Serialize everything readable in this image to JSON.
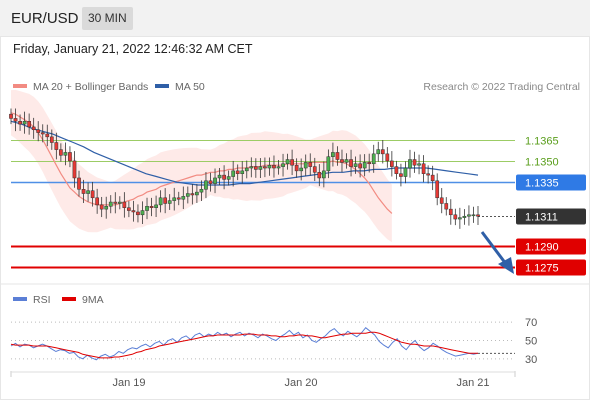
{
  "header": {
    "symbol": "EUR/USD",
    "timeframe": "30 MIN",
    "datetime": "Friday, January 21, 2022 12:46:32 AM CET"
  },
  "legend": {
    "ma20_label": "MA 20 + Bollinger Bands",
    "ma50_label": "MA 50",
    "copyright": "Research © 2022 Trading Central"
  },
  "rsi_legend": {
    "rsi_label": "RSI",
    "ma_label": "9MA"
  },
  "colors": {
    "bull": "#4caf50",
    "bear": "#e53935",
    "ma20": "#f28b82",
    "ma50": "#2f5fa7",
    "band": "#fdd8d5",
    "resistance": "#9ccc65",
    "pivot": "#4f8fe6",
    "support": "#e00000",
    "current": "#333333",
    "rsi": "#5b7fd6",
    "rsi_ma": "#e00000",
    "arrow": "#2f5fa7"
  },
  "chart_data": {
    "type": "candlestick",
    "y_range": [
      1.1266,
      1.1393
    ],
    "x_ticks": [
      "Jan 19",
      "Jan 20",
      "Jan 21"
    ],
    "levels": [
      {
        "label": "1.1365",
        "value": 1.1365,
        "kind": "resistance"
      },
      {
        "label": "1.1350",
        "value": 1.135,
        "kind": "resistance"
      },
      {
        "label": "1.1335",
        "value": 1.1335,
        "kind": "pivot"
      },
      {
        "label": "1.1311",
        "value": 1.1311,
        "kind": "current"
      },
      {
        "label": "1.1290",
        "value": 1.129,
        "kind": "support"
      },
      {
        "label": "1.1275",
        "value": 1.1275,
        "kind": "support"
      }
    ],
    "close": [
      1.138,
      1.1378,
      1.1376,
      1.1378,
      1.1374,
      1.1372,
      1.137,
      1.1369,
      1.1367,
      1.1363,
      1.1358,
      1.1354,
      1.1356,
      1.135,
      1.1338,
      1.133,
      1.1327,
      1.1329,
      1.1324,
      1.1319,
      1.1316,
      1.1318,
      1.1321,
      1.132,
      1.1321,
      1.1317,
      1.1315,
      1.1314,
      1.1312,
      1.1315,
      1.1318,
      1.1317,
      1.1319,
      1.1324,
      1.132,
      1.1322,
      1.1324,
      1.1323,
      1.1325,
      1.1327,
      1.1326,
      1.1328,
      1.133,
      1.1336,
      1.1334,
      1.1338,
      1.134,
      1.1337,
      1.1339,
      1.1343,
      1.1341,
      1.1343,
      1.1345,
      1.1346,
      1.1344,
      1.1346,
      1.1345,
      1.1347,
      1.1345,
      1.1346,
      1.1348,
      1.1351,
      1.1347,
      1.1343,
      1.1345,
      1.1349,
      1.1346,
      1.1342,
      1.1338,
      1.1343,
      1.1353,
      1.1356,
      1.1351,
      1.1349,
      1.1351,
      1.1346,
      1.1348,
      1.1345,
      1.1349,
      1.1348,
      1.1355,
      1.1358,
      1.1355,
      1.135,
      1.1346,
      1.1341,
      1.1339,
      1.1345,
      1.1351,
      1.1347,
      1.1348,
      1.1341,
      1.134,
      1.1336,
      1.1324,
      1.132,
      1.1316,
      1.1312,
      1.1309,
      1.131,
      1.1311,
      1.1312,
      1.1312,
      1.1311
    ],
    "ma20": [
      1.1384,
      1.1383,
      1.1381,
      1.1379,
      1.1377,
      1.1374,
      1.137,
      1.1365,
      1.1359,
      1.1353,
      1.1347,
      1.1341,
      1.1336,
      1.1331,
      1.1328,
      1.1325,
      1.1323,
      1.1321,
      1.132,
      1.1319,
      1.1319,
      1.1319,
      1.1319,
      1.1319,
      1.132,
      1.1321,
      1.1322,
      1.1323,
      1.1325,
      1.1326,
      1.1328,
      1.1329,
      1.133,
      1.1332,
      1.1333,
      1.1334,
      1.1335,
      1.1336,
      1.1337,
      1.1338,
      1.1339,
      1.134,
      1.134,
      1.1341,
      1.1342,
      1.1342,
      1.1343,
      1.1343,
      1.1344,
      1.1344,
      1.1345,
      1.1345,
      1.1345,
      1.1346,
      1.1346,
      1.1346,
      1.1347,
      1.1347,
      1.1347,
      1.1347,
      1.1347,
      1.1348,
      1.1348,
      1.1348,
      1.1348,
      1.1348,
      1.1349,
      1.1349,
      1.1349,
      1.1349,
      1.1349,
      1.135,
      1.1349,
      1.1349,
      1.1348,
      1.1346,
      1.1344,
      1.1341,
      1.1338,
      1.1334,
      1.1329,
      1.1324,
      1.132,
      1.1316,
      1.1313
    ],
    "ma50": [
      1.1378,
      1.1376,
      1.1373,
      1.1371,
      1.1369,
      1.1366,
      1.1363,
      1.136,
      1.1356,
      1.1353,
      1.135,
      1.1347,
      1.1344,
      1.1341,
      1.1339,
      1.1337,
      1.1335,
      1.1334,
      1.1333,
      1.1333,
      1.1333,
      1.1333,
      1.1334,
      1.1334,
      1.1335,
      1.1336,
      1.1337,
      1.1338,
      1.1339,
      1.134,
      1.1341,
      1.1342,
      1.1342,
      1.1343,
      1.1343,
      1.1344,
      1.1344,
      1.1345,
      1.1345,
      1.1345,
      1.1345,
      1.1344,
      1.1343,
      1.1342,
      1.1341,
      1.134
    ],
    "rsi": [
      44,
      47,
      43,
      46,
      45,
      42,
      44,
      46,
      44,
      41,
      38,
      40,
      39,
      36,
      37,
      32,
      30,
      34,
      31,
      29,
      33,
      35,
      32,
      34,
      38,
      36,
      40,
      42,
      41,
      44,
      46,
      43,
      47,
      49,
      45,
      50,
      52,
      48,
      53,
      55,
      51,
      56,
      58,
      54,
      57,
      55,
      59,
      56,
      58,
      54,
      57,
      59,
      55,
      58,
      56,
      53,
      57,
      55,
      52,
      50,
      54,
      57,
      61,
      56,
      59,
      53,
      56,
      50,
      48,
      52,
      55,
      60,
      63,
      58,
      55,
      60,
      57,
      54,
      58,
      64,
      60,
      56,
      49,
      45,
      42,
      48,
      52,
      44,
      40,
      46,
      50,
      43,
      39,
      42,
      47,
      44,
      40,
      37,
      35,
      33,
      34,
      35,
      36,
      35,
      36
    ],
    "rsi_ma": [
      46,
      45,
      45,
      45,
      45,
      44,
      44,
      44,
      44,
      43,
      42,
      41,
      40,
      39,
      38,
      37,
      35,
      34,
      33,
      32,
      31,
      31,
      31,
      32,
      32,
      33,
      34,
      35,
      37,
      38,
      40,
      41,
      42,
      44,
      45,
      46,
      47,
      48,
      49,
      50,
      51,
      52,
      53,
      54,
      55,
      55,
      56,
      56,
      56,
      56,
      56,
      56,
      57,
      57,
      57,
      56,
      56,
      56,
      55,
      55,
      54,
      54,
      55,
      55,
      56,
      56,
      55,
      55,
      54,
      53,
      53,
      54,
      55,
      56,
      57,
      57,
      58,
      58,
      58,
      58,
      59,
      59,
      58,
      56,
      54,
      52,
      50,
      48,
      47,
      46,
      46,
      45,
      44,
      44,
      44,
      43,
      42,
      41,
      40,
      39,
      38,
      37,
      36,
      36,
      36
    ]
  },
  "rsi_axis": {
    "ticks": [
      {
        "label": "70",
        "value": 70
      },
      {
        "label": "50",
        "value": 50
      },
      {
        "label": "30",
        "value": 30
      }
    ]
  }
}
